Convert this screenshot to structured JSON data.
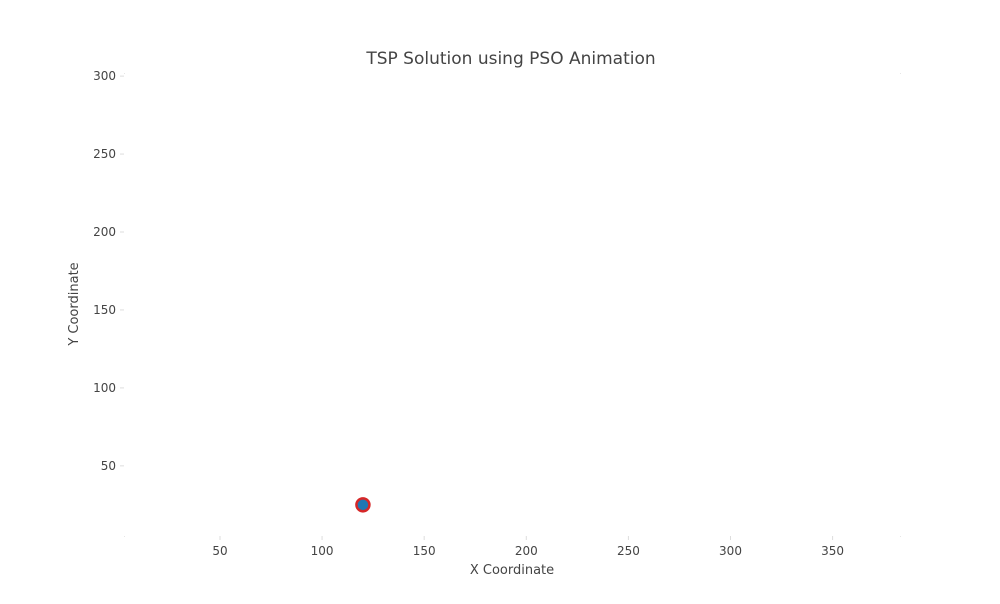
{
  "chart_data": {
    "type": "scatter",
    "title": "TSP Solution using PSO Animation",
    "xlabel": "X Coordinate",
    "ylabel": "Y Coordinate",
    "xlim": [
      3,
      383
    ],
    "ylim": [
      5,
      302
    ],
    "xticks": [
      50,
      100,
      150,
      200,
      250,
      300,
      350
    ],
    "yticks": [
      50,
      100,
      150,
      200,
      250,
      300
    ],
    "grid": false,
    "series": [
      {
        "points": [
          {
            "x": 120,
            "y": 25
          }
        ],
        "marker_fill": "#1f77b4",
        "marker_edge": "#d62728"
      }
    ]
  }
}
